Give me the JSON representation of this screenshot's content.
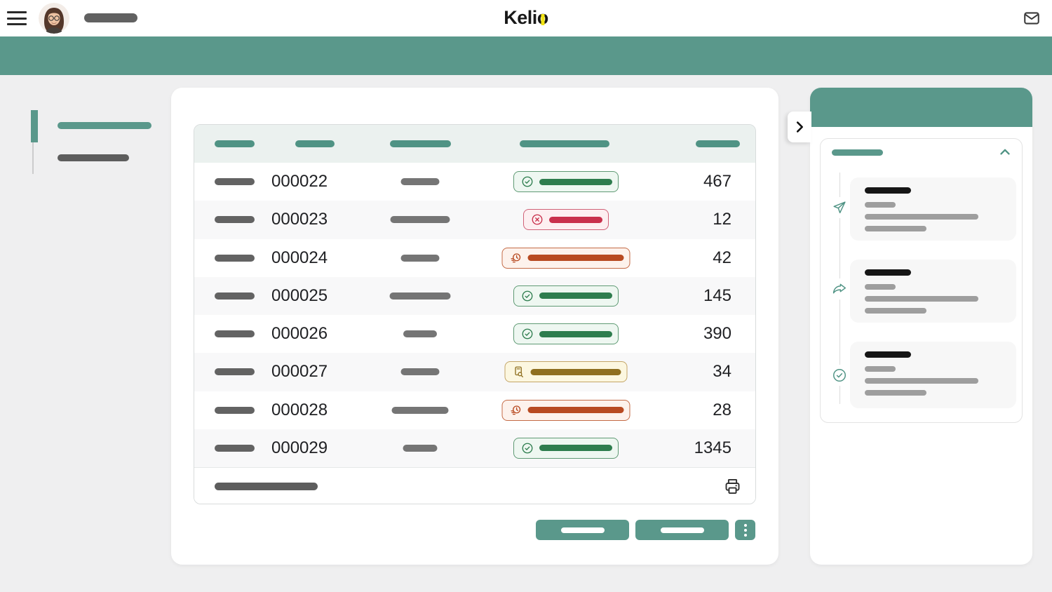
{
  "app": {
    "name": "Kelio"
  },
  "colors": {
    "teal": "#5A988B",
    "teal_dark": "#4F9384",
    "logo_yellow": "#F2E412",
    "status_green": "#2E7D4E",
    "status_red": "#C9304C",
    "status_orange": "#B84A21",
    "status_yellow": "#8F6F1F"
  },
  "header": {
    "logo_prefix": "Keli",
    "logo_o": "o"
  },
  "sidebar": {
    "items": [
      {
        "redacted": true,
        "active": true
      },
      {
        "redacted": true,
        "active": false
      }
    ]
  },
  "table": {
    "header_redacted_columns": 5,
    "rows": [
      {
        "number": "000022",
        "status": "green",
        "count": "467",
        "value_bar_w": 55
      },
      {
        "number": "000023",
        "status": "red",
        "count": "12",
        "value_bar_w": 85
      },
      {
        "number": "000024",
        "status": "orange",
        "count": "42",
        "value_bar_w": 55
      },
      {
        "number": "000025",
        "status": "green",
        "count": "145",
        "value_bar_w": 87
      },
      {
        "number": "000026",
        "status": "green",
        "count": "390",
        "value_bar_w": 48
      },
      {
        "number": "000027",
        "status": "yellow",
        "count": "34",
        "value_bar_w": 55
      },
      {
        "number": "000028",
        "status": "orange",
        "count": "28",
        "value_bar_w": 81
      },
      {
        "number": "000029",
        "status": "green",
        "count": "1345",
        "value_bar_w": 49
      }
    ],
    "statuses": {
      "green": {
        "icon": "check-circle-icon"
      },
      "red": {
        "icon": "x-circle-icon"
      },
      "orange": {
        "icon": "clock-pending-icon"
      },
      "yellow": {
        "icon": "document-search-icon"
      }
    },
    "footer": {
      "redacted_text": true,
      "print_icon": "print-icon"
    }
  },
  "actions": {
    "redacted_buttons": 2,
    "more_menu_icon": "kebab-icon"
  },
  "right_panel": {
    "collapse_icon": "chevron-right-icon",
    "section": {
      "redacted_title": true,
      "collapse_icon": "chevron-up-icon"
    },
    "timeline": [
      {
        "icon": "send-icon"
      },
      {
        "icon": "forward-icon"
      },
      {
        "icon": "check-circle-icon"
      }
    ]
  }
}
